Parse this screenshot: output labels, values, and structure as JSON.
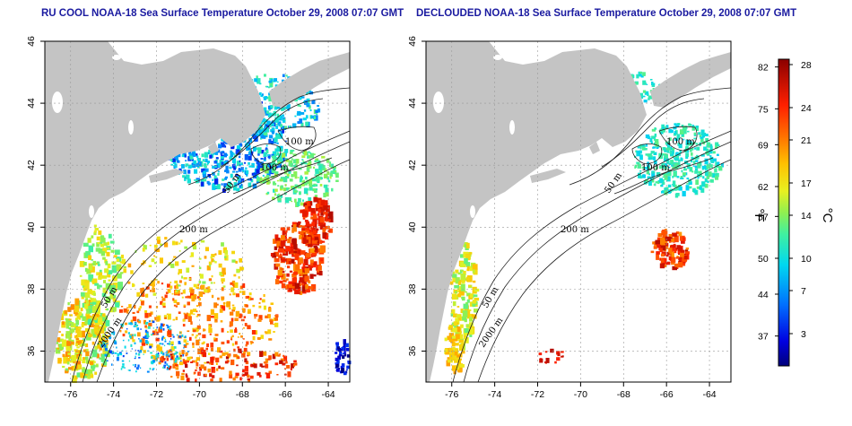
{
  "panels": [
    {
      "id": "left",
      "title": "RU COOL NOAA-18 Sea Surface Temperature October 29, 2008 07:07 GMT"
    },
    {
      "id": "right",
      "title": "DECLOUDED NOAA-18 Sea Surface Temperature October 29, 2008 07:07 GMT"
    }
  ],
  "map": {
    "lon_ticks": [
      "-76",
      "-74",
      "-72",
      "-70",
      "-68",
      "-66",
      "-64"
    ],
    "lat_ticks": [
      "46",
      "44",
      "42",
      "40",
      "38",
      "36"
    ],
    "lon_range": [
      -77.2,
      -63.0
    ],
    "lat_range": [
      35.0,
      46.0
    ]
  },
  "contours": {
    "left": [
      "100 m",
      "100 m",
      "50 m",
      "200 m",
      "50 m",
      "2000 m"
    ],
    "right": [
      "100 m",
      "100 m",
      "50 m",
      "200 m",
      "50 m",
      "2000 m"
    ]
  },
  "colorbar": {
    "fahrenheit_ticks": [
      "82",
      "75",
      "69",
      "62",
      "57",
      "50",
      "44",
      "37"
    ],
    "celsius_ticks": [
      "28",
      "24",
      "21",
      "17",
      "14",
      "10",
      "7",
      "3"
    ],
    "fahrenheit_unit": "°F",
    "celsius_unit": "°C",
    "range_c": [
      0,
      28.5
    ]
  },
  "colors": {
    "land": "#c4c4c4",
    "title": "#1a1aa0",
    "grid": "#9a9a9a",
    "cold": "#0000a0",
    "warm": "#a00000"
  }
}
